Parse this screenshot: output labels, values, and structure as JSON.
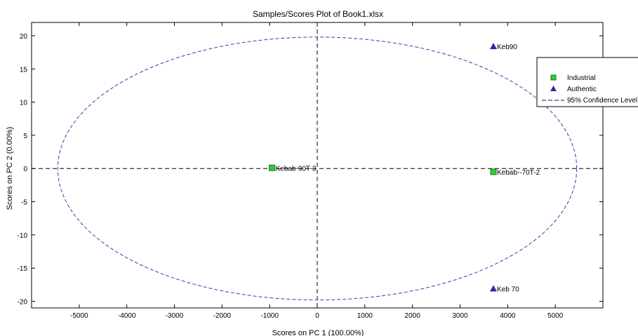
{
  "chart_data": {
    "type": "scatter",
    "title": "Samples/Scores Plot of Book1.xlsx",
    "xlabel": "Scores on PC 1 (100.00%)",
    "ylabel": "Scores on PC 2 (0.00%)",
    "xlim": [
      -6000,
      6000
    ],
    "ylim": [
      -21,
      22
    ],
    "x_ticks": [
      -5000,
      -4000,
      -3000,
      -2000,
      -1000,
      0,
      1000,
      2000,
      3000,
      4000,
      5000
    ],
    "y_ticks": [
      -20,
      -15,
      -10,
      -5,
      0,
      5,
      10,
      15,
      20
    ],
    "x_tick_labels": [
      "-5000",
      "-4000",
      "-3000",
      "-2000",
      "-1000",
      "0",
      "1000",
      "2000",
      "3000",
      "4000",
      "5000"
    ],
    "y_tick_labels": [
      "-20",
      "-15",
      "-10",
      "-5",
      "0",
      "5",
      "10",
      "15",
      "20"
    ],
    "grid": false,
    "legend_position": "top-right",
    "series": [
      {
        "name": "Industrial",
        "marker": "square",
        "color": "#33cc33",
        "edge_color": "#1a7a1a",
        "points": [
          {
            "x": -950,
            "y": 0.1,
            "label": "Kebab-90T-3"
          },
          {
            "x": 3700,
            "y": -0.5,
            "label": "Kebab--70T-2"
          }
        ]
      },
      {
        "name": "Authentic",
        "marker": "triangle",
        "color": "#2b2b9e",
        "points": [
          {
            "x": 3700,
            "y": 18.4,
            "label": "Keb90"
          },
          {
            "x": 3700,
            "y": -18.1,
            "label": "Keb 70"
          }
        ]
      }
    ],
    "confidence_ellipse": {
      "name": "95% Confidence Level",
      "center": [
        0,
        0
      ],
      "x_radius": 5450,
      "y_radius": 19.8,
      "color": "#3b3ba8",
      "style": "dashed"
    },
    "reference_lines": {
      "x": 0,
      "y": 0,
      "color": "#000000",
      "style": "dashed"
    }
  }
}
